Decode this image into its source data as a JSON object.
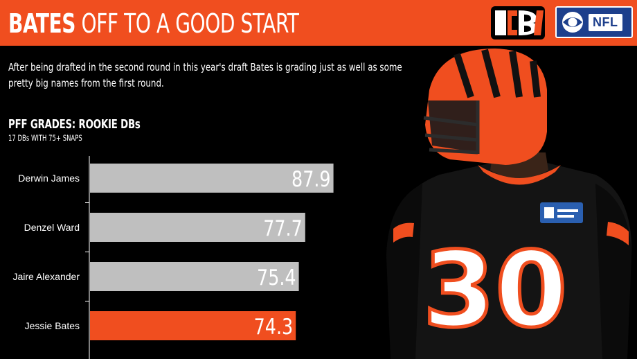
{
  "header": {
    "title_bold": "BATES",
    "title_rest": "OFF TO A GOOD START",
    "background_color": "#f04e1f",
    "team_logo_icon": "bengals-logo-icon",
    "network_logo": {
      "icon": "cbs-eye-icon",
      "text": "NFL"
    }
  },
  "intro": {
    "text": "After being drafted in the second round in this year's draft Bates is grading just as well as some pretty big names from the first round."
  },
  "chart_data": {
    "type": "bar",
    "orientation": "horizontal",
    "title": "PFF GRADES: ROOKIE DBs",
    "subtitle": "17 DBs WITH 75+ SNAPS",
    "categories": [
      "Derwin James",
      "Denzel Ward",
      "Jaire Alexander",
      "Jessie Bates"
    ],
    "values": [
      87.9,
      77.7,
      75.4,
      74.3
    ],
    "value_labels": [
      "87.9",
      "77.7",
      "75.4",
      "74.3"
    ],
    "colors": [
      "#bfbfbf",
      "#bfbfbf",
      "#bfbfbf",
      "#f04e1f"
    ],
    "highlight": "Jessie Bates",
    "xlim": [
      0,
      100
    ],
    "grid": false,
    "legend": "none"
  },
  "photo": {
    "icon": "player-photo-icon",
    "jersey_number": "30"
  }
}
